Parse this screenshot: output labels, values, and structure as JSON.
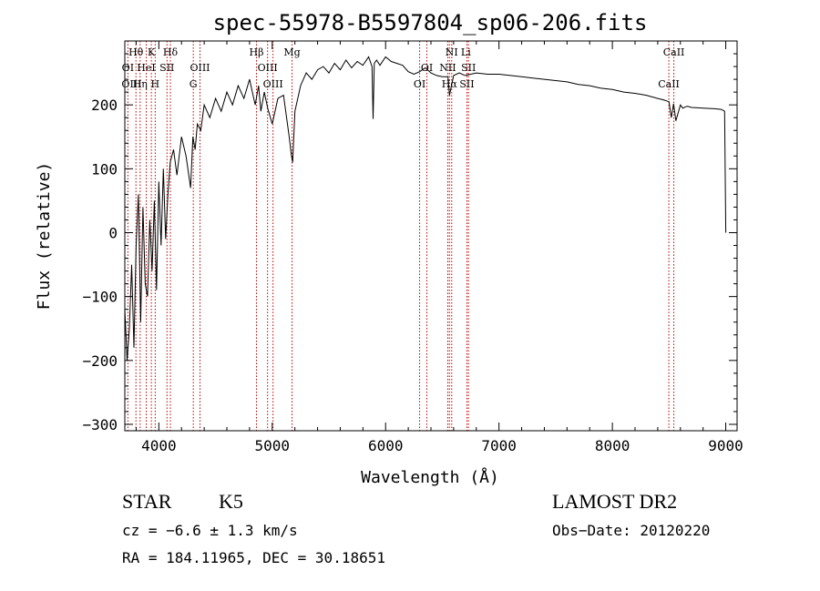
{
  "chart_data": {
    "type": "line",
    "title": "spec-55978-B5597804_sp06-206.fits",
    "xlabel": "Wavelength (Å)",
    "ylabel": "Flux (relative)",
    "xlim": [
      3700,
      9100
    ],
    "ylim": [
      -310,
      300
    ],
    "xticks": [
      4000,
      5000,
      6000,
      7000,
      8000,
      9000
    ],
    "xtick_labels": [
      "4000",
      "5000",
      "6000",
      "7000",
      "8000",
      "9000"
    ],
    "yticks": [
      -300,
      -200,
      -100,
      0,
      100,
      200
    ],
    "ytick_labels": [
      "−300",
      "−200",
      "−100",
      "0",
      "100",
      "200"
    ],
    "grid": false,
    "series": [
      {
        "name": "flux",
        "x": [
          3700,
          3720,
          3740,
          3760,
          3780,
          3800,
          3820,
          3840,
          3860,
          3880,
          3900,
          3920,
          3940,
          3960,
          3980,
          4000,
          4020,
          4040,
          4060,
          4080,
          4100,
          4130,
          4160,
          4200,
          4240,
          4280,
          4300,
          4320,
          4340,
          4370,
          4400,
          4450,
          4500,
          4550,
          4600,
          4650,
          4700,
          4750,
          4800,
          4850,
          4880,
          4900,
          4930,
          4960,
          5000,
          5050,
          5100,
          5150,
          5170,
          5180,
          5200,
          5250,
          5300,
          5350,
          5400,
          5450,
          5500,
          5550,
          5600,
          5650,
          5700,
          5750,
          5800,
          5850,
          5880,
          5890,
          5900,
          5920,
          5950,
          6000,
          6050,
          6100,
          6150,
          6200,
          6250,
          6300,
          6350,
          6400,
          6450,
          6500,
          6550,
          6563,
          6600,
          6650,
          6700,
          6750,
          6800,
          6900,
          7000,
          7100,
          7200,
          7300,
          7400,
          7500,
          7600,
          7700,
          7800,
          7900,
          8000,
          8100,
          8200,
          8300,
          8400,
          8450,
          8500,
          8520,
          8540,
          8560,
          8600,
          8620,
          8660,
          8700,
          8800,
          8900,
          8960,
          8990,
          9000
        ],
        "y": [
          -120,
          -200,
          -150,
          -50,
          -180,
          -20,
          60,
          -140,
          40,
          -80,
          -100,
          20,
          -60,
          50,
          -90,
          80,
          -20,
          100,
          -10,
          60,
          110,
          130,
          90,
          150,
          120,
          70,
          150,
          130,
          170,
          160,
          200,
          180,
          210,
          190,
          220,
          200,
          230,
          210,
          240,
          200,
          230,
          190,
          220,
          195,
          170,
          210,
          215,
          150,
          120,
          110,
          190,
          230,
          250,
          240,
          255,
          260,
          250,
          265,
          255,
          270,
          258,
          268,
          262,
          275,
          260,
          178,
          265,
          270,
          262,
          275,
          268,
          265,
          262,
          252,
          248,
          252,
          258,
          250,
          246,
          244,
          244,
          215,
          246,
          250,
          246,
          248,
          250,
          248,
          248,
          246,
          244,
          242,
          240,
          238,
          236,
          232,
          230,
          226,
          224,
          220,
          218,
          215,
          210,
          208,
          205,
          180,
          202,
          175,
          200,
          195,
          198,
          196,
          195,
          194,
          193,
          190,
          0
        ]
      }
    ],
    "annotations": [
      {
        "label": "Hθ",
        "x": 3798,
        "row": "top"
      },
      {
        "label": "K",
        "x": 3934,
        "row": "top"
      },
      {
        "label": "Hδ",
        "x": 4102,
        "row": "top"
      },
      {
        "label": "Hβ",
        "x": 4861,
        "row": "top"
      },
      {
        "label": "Mg",
        "x": 5175,
        "row": "top"
      },
      {
        "label": "NI",
        "x": 6583,
        "row": "top"
      },
      {
        "label": "Li",
        "x": 6708,
        "row": "top"
      },
      {
        "label": "CaII",
        "x": 8542,
        "row": "top"
      },
      {
        "label": "OI",
        "x": 3727,
        "row": "mid"
      },
      {
        "label": "HeI",
        "x": 3889,
        "row": "mid"
      },
      {
        "label": "SII",
        "x": 4072,
        "row": "mid"
      },
      {
        "label": "OIII",
        "x": 4363,
        "row": "mid"
      },
      {
        "label": "OIII",
        "x": 4959,
        "row": "mid"
      },
      {
        "label": "OI",
        "x": 6364,
        "row": "mid"
      },
      {
        "label": "NII",
        "x": 6548,
        "row": "mid"
      },
      {
        "label": "SII",
        "x": 6731,
        "row": "mid"
      },
      {
        "label": "OIII",
        "x": 3760,
        "row": "low"
      },
      {
        "label": "Hη",
        "x": 3835,
        "row": "low"
      },
      {
        "label": "H",
        "x": 3968,
        "row": "low"
      },
      {
        "label": "G",
        "x": 4304,
        "row": "low"
      },
      {
        "label": "OIII",
        "x": 5007,
        "row": "low"
      },
      {
        "label": "OI",
        "x": 6300,
        "row": "low"
      },
      {
        "label": "Hα",
        "x": 6563,
        "row": "low"
      },
      {
        "label": "SII",
        "x": 6717,
        "row": "low"
      },
      {
        "label": "CaII",
        "x": 8498,
        "row": "low"
      }
    ],
    "line_markers": [
      3727,
      3798,
      3835,
      3889,
      3934,
      3968,
      4072,
      4102,
      4304,
      4363,
      4861,
      4959,
      5007,
      5175,
      6300,
      6364,
      6548,
      6563,
      6583,
      6717,
      6731,
      8498,
      8542
    ]
  },
  "info": {
    "object_type": "STAR",
    "subclass": "K5",
    "survey": "LAMOST DR2",
    "cz": "cz = −6.6 ± 1.3 km/s",
    "obs_date": "Obs−Date: 20120220",
    "coords": "RA = 184.11965, DEC =  30.18651"
  }
}
